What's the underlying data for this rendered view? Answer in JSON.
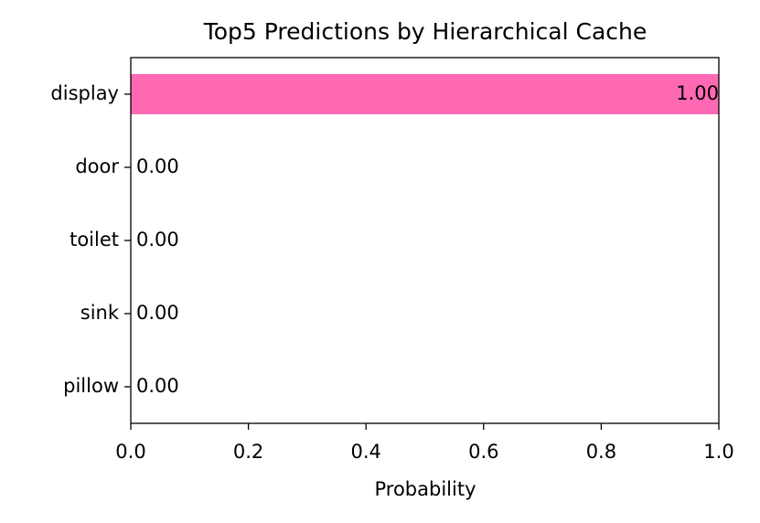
{
  "chart_data": {
    "type": "barh",
    "title": "Top5 Predictions by Hierarchical Cache",
    "xlabel": "Probability",
    "categories": [
      "display",
      "door",
      "toilet",
      "sink",
      "pillow"
    ],
    "values": [
      1,
      0,
      0,
      0,
      0
    ],
    "value_labels": [
      "1.00",
      "0.00",
      "0.00",
      "0.00",
      "0.00"
    ],
    "color": "#ff69b4",
    "xlim": [
      0,
      1
    ],
    "xticks": [
      {
        "value": 0,
        "label": "0.0"
      },
      {
        "value": 0.2,
        "label": "0.2"
      },
      {
        "value": 0.4,
        "label": "0.4"
      },
      {
        "value": 0.6,
        "label": "0.6"
      },
      {
        "value": 0.8,
        "label": "0.8"
      },
      {
        "value": 1,
        "label": "1.0"
      }
    ],
    "grid": false
  }
}
